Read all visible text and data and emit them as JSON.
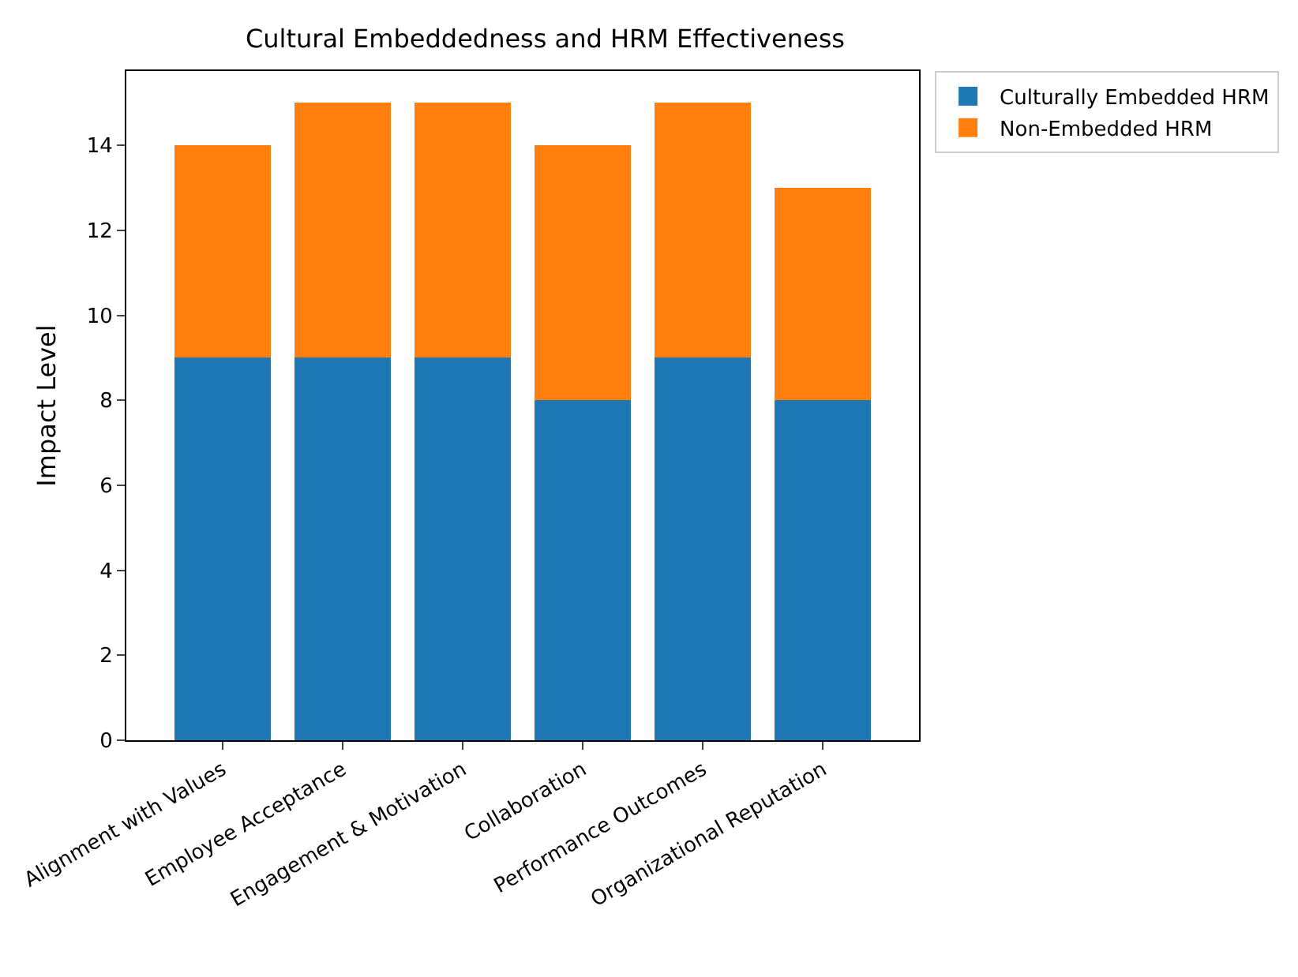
{
  "chart_data": {
    "type": "bar",
    "title": "Cultural Embeddedness and HRM Effectiveness",
    "ylabel": "Impact Level",
    "categories": [
      "Alignment with Values",
      "Employee Acceptance",
      "Engagement & Motivation",
      "Collaboration",
      "Performance Outcomes",
      "Organizational Reputation"
    ],
    "series": [
      {
        "name": "Culturally Embedded HRM",
        "color": "#1f77b4",
        "values": [
          9,
          9,
          9,
          8,
          9,
          8
        ]
      },
      {
        "name": "Non-Embedded HRM",
        "color": "#ff7f0e",
        "values": [
          5,
          6,
          6,
          6,
          6,
          5
        ]
      }
    ],
    "stacked": true,
    "ylim": [
      0,
      15.75
    ],
    "yticks": [
      0,
      2,
      4,
      6,
      8,
      10,
      12,
      14
    ],
    "legend": "top right"
  }
}
